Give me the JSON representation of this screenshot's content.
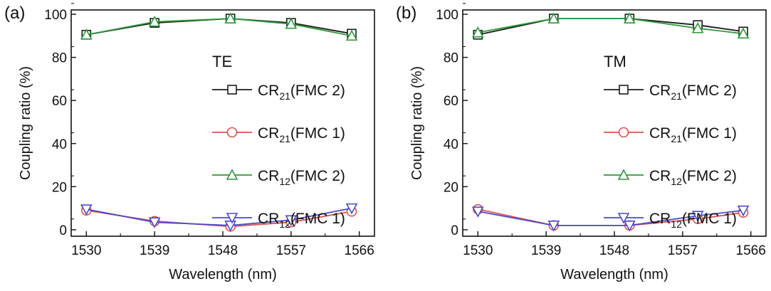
{
  "chart_data": [
    {
      "type": "line",
      "panel_label": "(a)",
      "polarization": "TE",
      "xlabel": "Wavelength (nm)",
      "ylabel": "Coupling ratio (%)",
      "xlim": [
        1528,
        1568
      ],
      "ylim": [
        -3,
        102
      ],
      "x_ticks": [
        1530,
        1539,
        1548,
        1557,
        1566
      ],
      "y_ticks": [
        0,
        20,
        40,
        60,
        80,
        100
      ],
      "x": [
        1530,
        1539,
        1549,
        1557,
        1565
      ],
      "grid": false,
      "legend_position": "center-right",
      "series": [
        {
          "name": "CR21(FMC 2)",
          "label_main": "CR",
          "label_sub": "21",
          "label_tail": "(FMC 2)",
          "color": "#1a1a1a",
          "marker": "square",
          "values": [
            90.5,
            96,
            98,
            96,
            91
          ]
        },
        {
          "name": "CR21(FMC 1)",
          "label_main": "CR",
          "label_sub": "21",
          "label_tail": "(FMC 1)",
          "color": "#d9534f",
          "marker": "circle",
          "values": [
            9,
            4,
            1.5,
            3.5,
            8.5
          ]
        },
        {
          "name": "CR12(FMC 2)",
          "label_main": "CR",
          "label_sub": "12",
          "label_tail": "(FMC 2)",
          "color": "#2e9a3a",
          "marker": "triangle-up",
          "values": [
            90.5,
            96.5,
            98,
            95.5,
            90
          ]
        },
        {
          "name": "CR12(FMC 1)",
          "label_main": "CR",
          "label_sub": "12",
          "label_tail": "(FMC 1)",
          "color": "#4a4ad0",
          "marker": "triangle-down",
          "values": [
            9.5,
            3.5,
            2,
            4.5,
            10
          ]
        }
      ]
    },
    {
      "type": "line",
      "panel_label": "(b)",
      "polarization": "TM",
      "xlabel": "Wavelength (nm)",
      "ylabel": "Coupling ratio (%)",
      "xlim": [
        1528,
        1568
      ],
      "ylim": [
        -3,
        102
      ],
      "x_ticks": [
        1530,
        1539,
        1548,
        1557,
        1566
      ],
      "y_ticks": [
        0,
        20,
        40,
        60,
        80,
        100
      ],
      "x": [
        1530,
        1540,
        1550,
        1559,
        1565
      ],
      "grid": false,
      "legend_position": "center-right",
      "series": [
        {
          "name": "CR21(FMC 2)",
          "label_main": "CR",
          "label_sub": "21",
          "label_tail": "(FMC 2)",
          "color": "#1a1a1a",
          "marker": "square",
          "values": [
            90.5,
            98,
            98,
            95,
            92
          ]
        },
        {
          "name": "CR21(FMC 1)",
          "label_main": "CR",
          "label_sub": "21",
          "label_tail": "(FMC 1)",
          "color": "#d9534f",
          "marker": "circle",
          "values": [
            9.5,
            2,
            2,
            5,
            8
          ]
        },
        {
          "name": "CR12(FMC 2)",
          "label_main": "CR",
          "label_sub": "12",
          "label_tail": "(FMC 2)",
          "color": "#2e9a3a",
          "marker": "triangle-up",
          "values": [
            91.5,
            98,
            98,
            93.5,
            91
          ]
        },
        {
          "name": "CR12(FMC 1)",
          "label_main": "CR",
          "label_sub": "12",
          "label_tail": "(FMC 1)",
          "color": "#4a4ad0",
          "marker": "triangle-down",
          "values": [
            8.5,
            2,
            2,
            6.5,
            9
          ]
        }
      ]
    }
  ]
}
